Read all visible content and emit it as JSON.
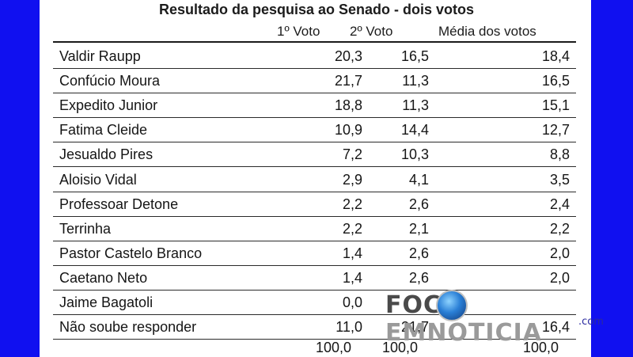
{
  "title": "Resultado da pesquisa ao Senado - dois votos",
  "columns": [
    "1º Voto",
    "2º Voto",
    "Média dos votos"
  ],
  "rows": [
    {
      "name": "Valdir Raupp",
      "v1": "20,3",
      "v2": "16,5",
      "avg": "18,4"
    },
    {
      "name": "Confúcio Moura",
      "v1": "21,7",
      "v2": "11,3",
      "avg": "16,5"
    },
    {
      "name": "Expedito Junior",
      "v1": "18,8",
      "v2": "11,3",
      "avg": "15,1"
    },
    {
      "name": "Fatima Cleide",
      "v1": "10,9",
      "v2": "14,4",
      "avg": "12,7"
    },
    {
      "name": "Jesualdo Pires",
      "v1": "7,2",
      "v2": "10,3",
      "avg": "8,8"
    },
    {
      "name": "Aloisio Vidal",
      "v1": "2,9",
      "v2": "4,1",
      "avg": "3,5"
    },
    {
      "name": "Professoar Detone",
      "v1": "2,2",
      "v2": "2,6",
      "avg": "2,4"
    },
    {
      "name": "Terrinha",
      "v1": "2,2",
      "v2": "2,1",
      "avg": "2,2"
    },
    {
      "name": "Pastor Castelo Branco",
      "v1": "1,4",
      "v2": "2,6",
      "avg": "2,0"
    },
    {
      "name": "Caetano Neto",
      "v1": "1,4",
      "v2": "2,6",
      "avg": "2,0"
    },
    {
      "name": "Jaime Bagatoli",
      "v1": "0,0",
      "v2": "",
      "avg": ""
    },
    {
      "name": "Não soube responder",
      "v1": "11,0",
      "v2": "21,7",
      "avg": "16,4"
    }
  ],
  "totals": {
    "v1": "100,0",
    "v2": "100,0",
    "avg": "100,0"
  },
  "watermark": {
    "left": "FOC",
    "right": "EMNOTICIA",
    "suffix": ".com"
  },
  "colors": {
    "background": "#1010f0",
    "sheet": "#ffffff",
    "text": "#151515"
  }
}
